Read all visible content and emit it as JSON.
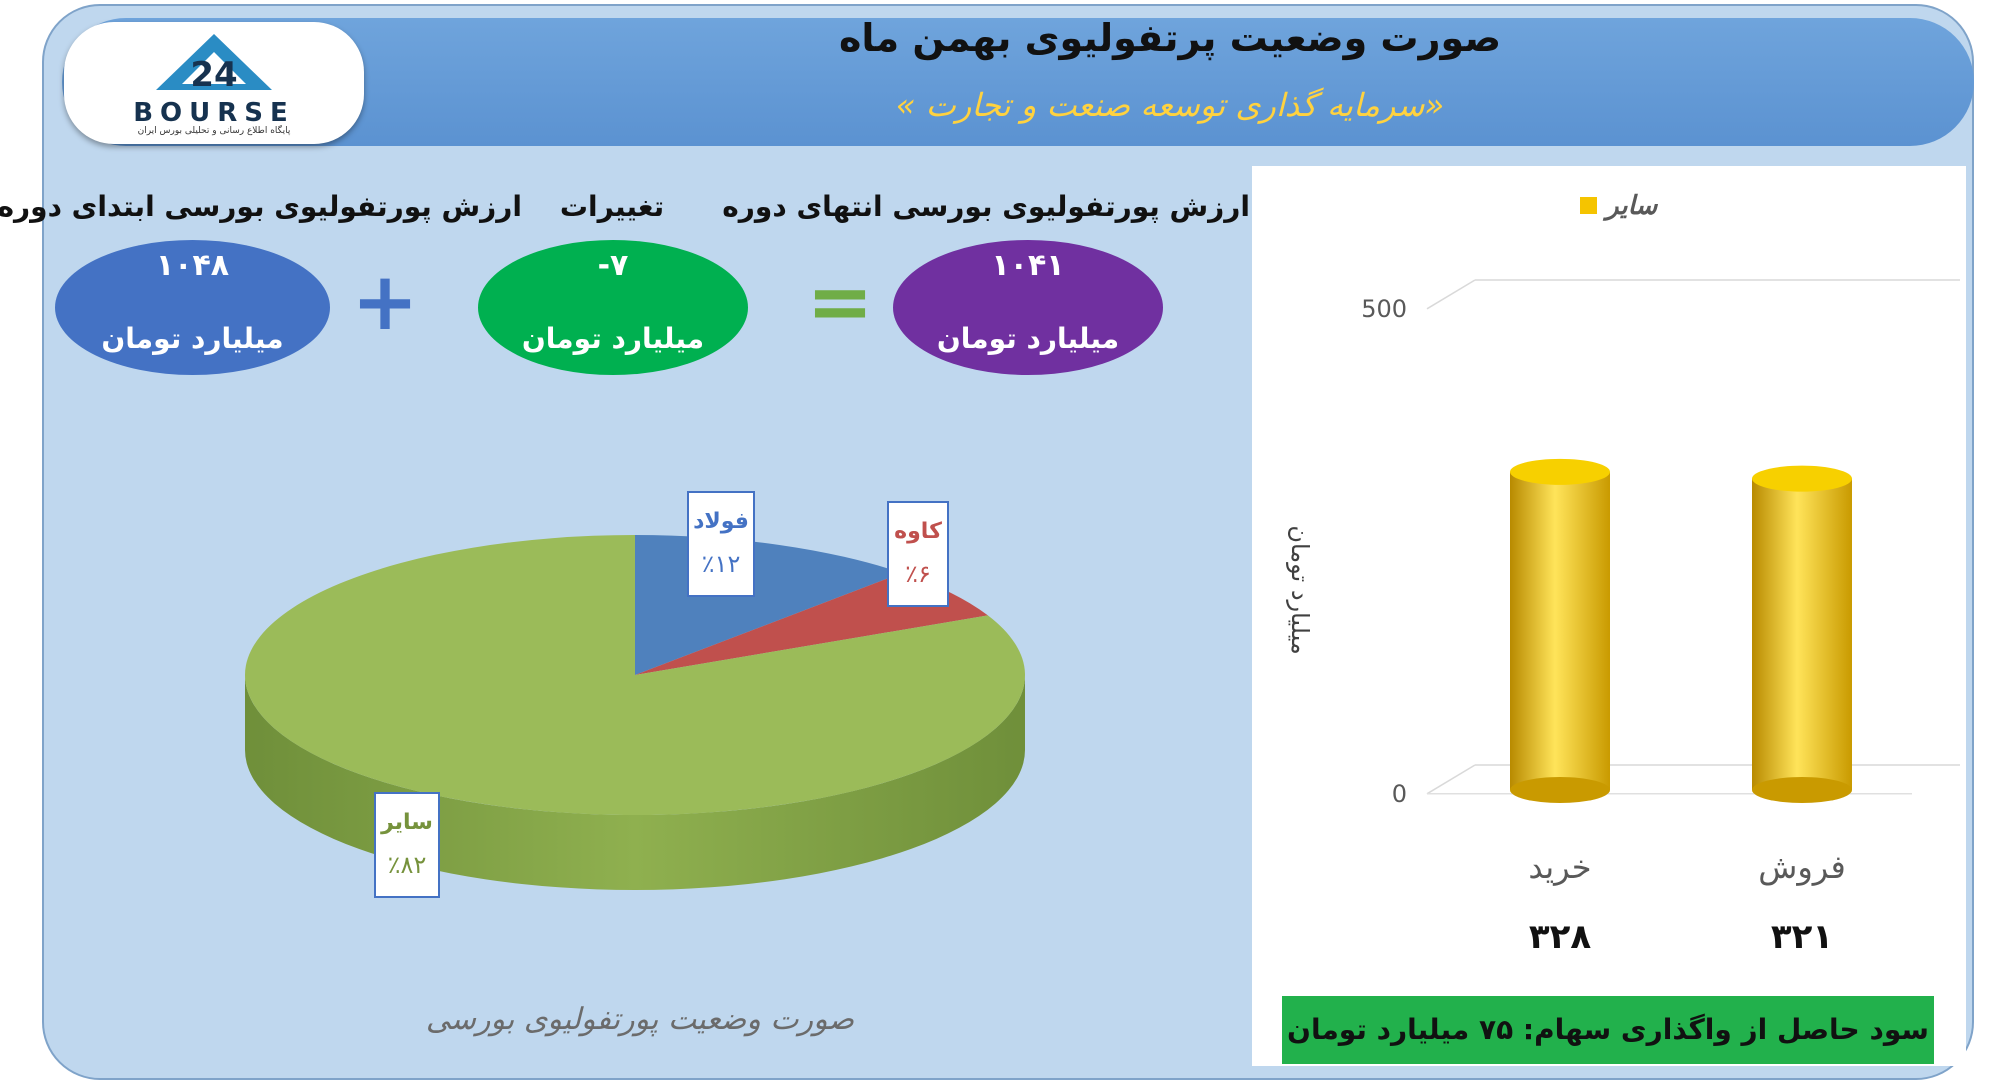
{
  "header": {
    "title": "صورت وضعیت پرتفولیوی بهمن ماه",
    "subtitle": "«سرمایه گذاری توسعه صنعت و تجارت »",
    "logo_text": "BOURSE",
    "logo_subtitle": "پایگاه اطلاع رسانی و تحلیلی بورس ایران"
  },
  "summary": {
    "start": {
      "label": "ارزش پورتفولیوی بورسی ابتدای دوره",
      "value": "۱۰۴۸",
      "unit": "میلیارد تومان"
    },
    "plus_symbol": "+",
    "change": {
      "label": "تغییرات",
      "value": "-۷",
      "unit": "میلیارد تومان"
    },
    "equals_symbol": "=",
    "end": {
      "label": "ارزش پورتفولیوی بورسی انتهای دوره",
      "value": "۱۰۴۱",
      "unit": "میلیارد تومان"
    },
    "colors": {
      "start": "#4472c4",
      "change": "#00b050",
      "end": "#7030a0"
    }
  },
  "pie_title": "صورت وضعیت پورتفولیوی بورسی",
  "profit_text": "سود حاصل از واگذاری سهام: ۷۵ میلیارد تومان",
  "chart_data": [
    {
      "type": "pie",
      "title": "صورت وضعیت پورتفولیوی بورسی",
      "slices": [
        {
          "label": "فولاد",
          "value": 12,
          "display": "٪۱۲",
          "color": "#4f81bd"
        },
        {
          "label": "کاوه",
          "value": 6,
          "display": "٪۶",
          "color": "#c0504d"
        },
        {
          "label": "سایر",
          "value": 82,
          "display": "٪۸۲",
          "color": "#9bbb59"
        }
      ]
    },
    {
      "type": "bar",
      "categories": [
        "خرید",
        "فروش"
      ],
      "series": [
        {
          "name": "سایر",
          "values": [
            328,
            321
          ],
          "color": "#f5c400"
        }
      ],
      "value_labels": [
        "۳۲۸",
        "۳۲۱"
      ],
      "ylabel": "میلیارد تومان",
      "ylim": [
        0,
        500
      ],
      "yticks": [
        "0",
        "500"
      ],
      "legend_position": "top"
    }
  ]
}
